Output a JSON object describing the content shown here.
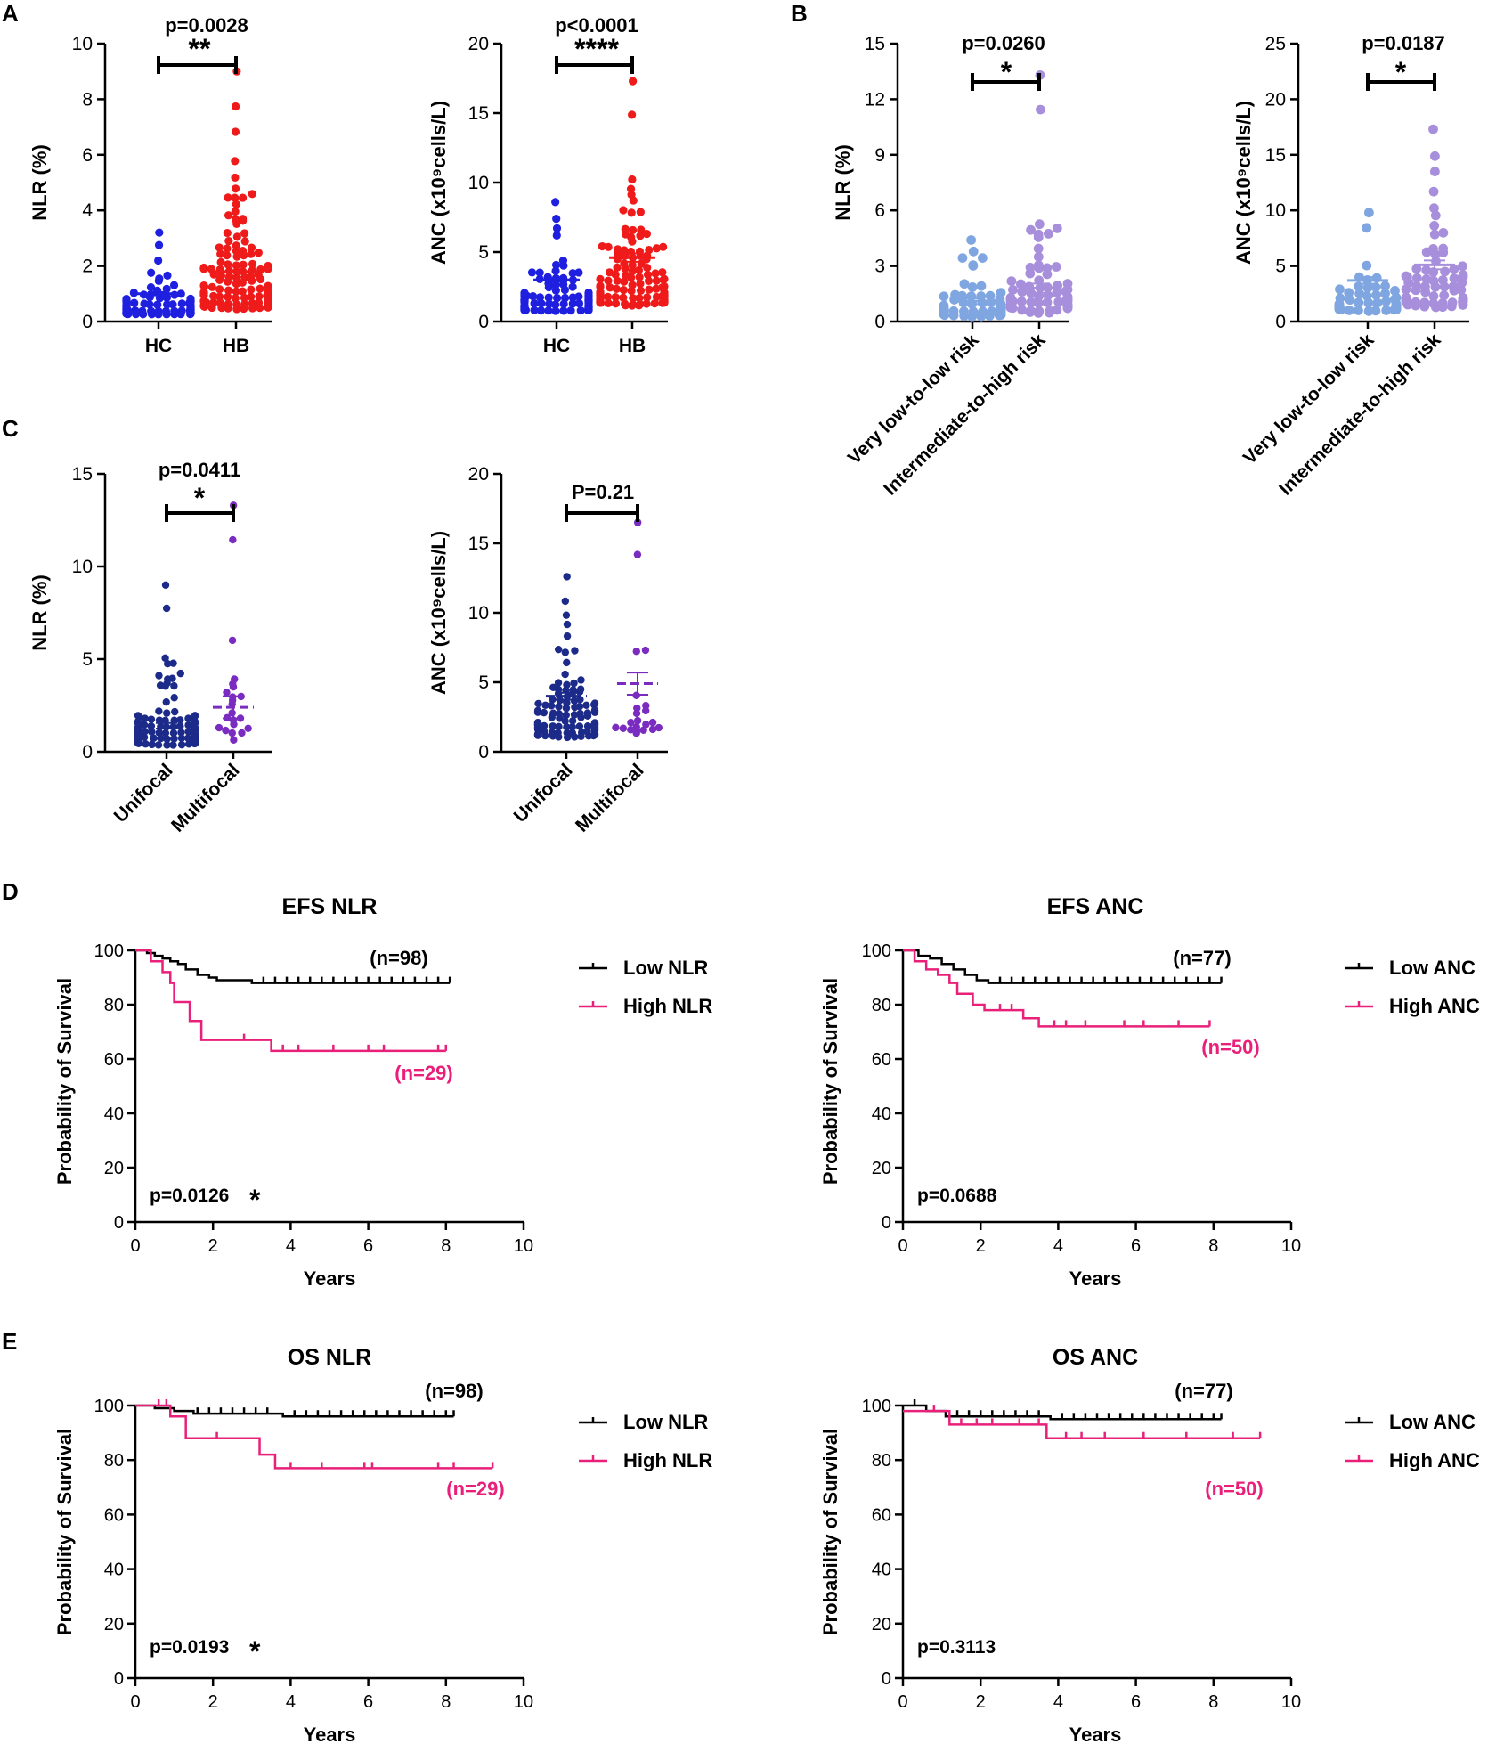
{
  "colors": {
    "hc": "#1f1fe0",
    "hb": "#ef1a1a",
    "low_risk": "#7fa6e0",
    "high_risk": "#a78fdc",
    "unifocal": "#1c2a8a",
    "multifocal": "#7a2cc0",
    "low_curve": "#000000",
    "high_curve": "#e8207a"
  },
  "panels": {
    "A": {
      "letter": "A",
      "nlr": {
        "ylabel": "NLR (%)",
        "yticks": [
          "0",
          "2",
          "4",
          "6",
          "8",
          "10"
        ],
        "categories": [
          "HC",
          "HB"
        ],
        "pvalue": "p=0.0028",
        "stars": "**"
      },
      "anc": {
        "ylabel": "ANC (x10⁹cells/L)",
        "yticks": [
          "0",
          "5",
          "10",
          "15",
          "20"
        ],
        "categories": [
          "HC",
          "HB"
        ],
        "pvalue": "p<0.0001",
        "stars": "****"
      }
    },
    "B": {
      "letter": "B",
      "nlr": {
        "ylabel": "NLR (%)",
        "yticks": [
          "0",
          "3",
          "6",
          "9",
          "12",
          "15"
        ],
        "categories": [
          "Very low-to-low risk",
          "Intermediate-to-high risk"
        ],
        "pvalue": "p=0.0260",
        "stars": "*"
      },
      "anc": {
        "ylabel": "ANC (x10⁹cells/L)",
        "yticks": [
          "0",
          "5",
          "10",
          "15",
          "20",
          "25"
        ],
        "categories": [
          "Very low-to-low risk",
          "Intermediate-to-high risk"
        ],
        "pvalue": "p=0.0187",
        "stars": "*"
      }
    },
    "C": {
      "letter": "C",
      "nlr": {
        "ylabel": "NLR (%)",
        "yticks": [
          "0",
          "5",
          "10",
          "15"
        ],
        "categories": [
          "Unifocal",
          "Multifocal"
        ],
        "pvalue": "p=0.0411",
        "stars": "*"
      },
      "anc": {
        "ylabel": "ANC (x10⁹cells/L)",
        "yticks": [
          "0",
          "5",
          "10",
          "15",
          "20"
        ],
        "categories": [
          "Unifocal",
          "Multifocal"
        ],
        "pvalue": "P=0.21",
        "stars": ""
      }
    },
    "D": {
      "letter": "D",
      "efs_nlr": {
        "title": "EFS NLR",
        "ylabel": "Probability of Survival",
        "xlabel": "Years",
        "pvalue": "p=0.0126",
        "stars": "*",
        "n_low": "(n=98)",
        "n_high": "(n=29)",
        "legend_low": "Low NLR",
        "legend_high": "High NLR"
      },
      "efs_anc": {
        "title": "EFS ANC",
        "ylabel": "Probability of Survival",
        "xlabel": "Years",
        "pvalue": "p=0.0688",
        "stars": "",
        "n_low": "(n=77)",
        "n_high": "(n=50)",
        "legend_low": "Low ANC",
        "legend_high": "High ANC"
      }
    },
    "E": {
      "letter": "E",
      "os_nlr": {
        "title": "OS NLR",
        "ylabel": "Probability of Survival",
        "xlabel": "Years",
        "pvalue": "p=0.0193",
        "stars": "*",
        "n_low": "(n=98)",
        "n_high": "(n=29)",
        "legend_low": "Low NLR",
        "legend_high": "High NLR"
      },
      "os_anc": {
        "title": "OS ANC",
        "ylabel": "Probability of Survival",
        "xlabel": "Years",
        "pvalue": "p=0.3113",
        "stars": "",
        "n_low": "(n=77)",
        "n_high": "(n=50)",
        "legend_low": "Low ANC",
        "legend_high": "High ANC"
      }
    }
  },
  "chart_data": [
    {
      "id": "A-nlr",
      "type": "scatter",
      "title": "",
      "xlabel": "",
      "ylabel": "NLR (%)",
      "ylim": [
        0,
        10
      ],
      "categories": [
        "HC",
        "HB"
      ],
      "groups": [
        {
          "name": "HC",
          "n": 110,
          "mean": 1.0,
          "sem": 0.06,
          "max": 3.2,
          "spread": 0.45
        },
        {
          "name": "HB",
          "n": 127,
          "mean": 1.8,
          "sem": 0.2,
          "max": 9.0,
          "spread": 1.6
        }
      ],
      "comparison": {
        "p": "p=0.0028",
        "stars": "**"
      }
    },
    {
      "id": "A-anc",
      "type": "scatter",
      "title": "",
      "xlabel": "",
      "ylabel": "ANC (x10⁹cells/L)",
      "ylim": [
        0,
        20
      ],
      "categories": [
        "HC",
        "HB"
      ],
      "groups": [
        {
          "name": "HC",
          "n": 110,
          "mean": 3.0,
          "sem": 0.12,
          "max": 8.6,
          "spread": 1.2
        },
        {
          "name": "HB",
          "n": 127,
          "mean": 4.6,
          "sem": 0.3,
          "max": 17.3,
          "spread": 2.6
        }
      ],
      "comparison": {
        "p": "p<0.0001",
        "stars": "****"
      }
    },
    {
      "id": "B-nlr",
      "type": "scatter",
      "title": "",
      "xlabel": "",
      "ylabel": "NLR (%)",
      "ylim": [
        0,
        15
      ],
      "categories": [
        "Very low-to-low risk",
        "Intermediate-to-high risk"
      ],
      "groups": [
        {
          "name": "Very low-to-low risk",
          "n": 55,
          "mean": 1.1,
          "sem": 0.15,
          "max": 4.4,
          "spread": 0.9
        },
        {
          "name": "Intermediate-to-high risk",
          "n": 72,
          "mean": 1.8,
          "sem": 0.25,
          "max": 13.3,
          "spread": 1.5
        }
      ],
      "comparison": {
        "p": "p=0.0260",
        "stars": "*"
      }
    },
    {
      "id": "B-anc",
      "type": "scatter",
      "title": "",
      "xlabel": "",
      "ylabel": "ANC (x10⁹cells/L)",
      "ylim": [
        0,
        25
      ],
      "categories": [
        "Very low-to-low risk",
        "Intermediate-to-high risk"
      ],
      "groups": [
        {
          "name": "Very low-to-low risk",
          "n": 55,
          "mean": 3.7,
          "sem": 0.3,
          "max": 9.8,
          "spread": 1.9
        },
        {
          "name": "Intermediate-to-high risk",
          "n": 72,
          "mean": 5.1,
          "sem": 0.4,
          "max": 17.3,
          "spread": 2.9
        }
      ],
      "comparison": {
        "p": "p=0.0187",
        "stars": "*"
      }
    },
    {
      "id": "C-nlr",
      "type": "scatter",
      "title": "",
      "xlabel": "",
      "ylabel": "NLR (%)",
      "ylim": [
        0,
        15
      ],
      "categories": [
        "Unifocal",
        "Multifocal"
      ],
      "groups": [
        {
          "name": "Unifocal",
          "n": 105,
          "mean": 1.4,
          "sem": 0.15,
          "max": 9.0,
          "spread": 1.3
        },
        {
          "name": "Multifocal",
          "n": 22,
          "mean": 2.4,
          "sem": 0.6,
          "max": 13.3,
          "spread": 1.8
        }
      ],
      "comparison": {
        "p": "p=0.0411",
        "stars": "*"
      }
    },
    {
      "id": "C-anc",
      "type": "scatter",
      "title": "",
      "xlabel": "",
      "ylabel": "ANC (x10⁹cells/L)",
      "ylim": [
        0,
        20
      ],
      "categories": [
        "Unifocal",
        "Multifocal"
      ],
      "groups": [
        {
          "name": "Unifocal",
          "n": 105,
          "mean": 4.0,
          "sem": 0.25,
          "max": 12.6,
          "spread": 2.3
        },
        {
          "name": "Multifocal",
          "n": 22,
          "mean": 4.9,
          "sem": 0.8,
          "max": 16.5,
          "spread": 2.8
        }
      ],
      "comparison": {
        "p": "P=0.21",
        "stars": ""
      }
    },
    {
      "id": "D-efs-nlr",
      "type": "line",
      "title": "EFS NLR",
      "xlabel": "Years",
      "ylabel": "Probability of Survival",
      "xlim": [
        0,
        10
      ],
      "ylim": [
        0,
        100
      ],
      "series": [
        {
          "name": "Low NLR",
          "n": 98,
          "steps": [
            [
              0,
              100
            ],
            [
              0.3,
              99
            ],
            [
              0.5,
              98
            ],
            [
              0.7,
              97
            ],
            [
              0.9,
              96
            ],
            [
              1.1,
              95
            ],
            [
              1.3,
              93
            ],
            [
              1.6,
              91
            ],
            [
              1.9,
              90
            ],
            [
              2.1,
              89
            ],
            [
              3.0,
              88
            ],
            [
              8.1,
              88
            ]
          ],
          "censored": [
            3.3,
            3.6,
            3.9,
            4.2,
            4.5,
            4.8,
            5.1,
            5.4,
            5.7,
            6.0,
            6.3,
            6.6,
            6.9,
            7.2,
            7.5,
            7.8,
            8.1
          ]
        },
        {
          "name": "High NLR",
          "n": 29,
          "steps": [
            [
              0,
              100
            ],
            [
              0.4,
              96
            ],
            [
              0.7,
              92
            ],
            [
              0.9,
              88
            ],
            [
              1.0,
              81
            ],
            [
              1.4,
              74
            ],
            [
              1.7,
              67
            ],
            [
              3.5,
              63
            ],
            [
              8.0,
              63
            ]
          ],
          "censored": [
            2.8,
            3.8,
            4.2,
            5.1,
            6.0,
            6.4,
            7.8,
            8.0
          ]
        }
      ],
      "annotation": {
        "p": "p=0.0126",
        "stars": "*"
      }
    },
    {
      "id": "D-efs-anc",
      "type": "line",
      "title": "EFS ANC",
      "xlabel": "Years",
      "ylabel": "Probability of Survival",
      "xlim": [
        0,
        10
      ],
      "ylim": [
        0,
        100
      ],
      "series": [
        {
          "name": "Low ANC",
          "n": 77,
          "steps": [
            [
              0,
              100
            ],
            [
              0.4,
              98
            ],
            [
              0.7,
              97
            ],
            [
              1.0,
              95
            ],
            [
              1.3,
              93
            ],
            [
              1.6,
              91
            ],
            [
              1.9,
              89
            ],
            [
              2.2,
              88
            ],
            [
              8.2,
              88
            ]
          ],
          "censored": [
            2.5,
            2.8,
            3.1,
            3.4,
            3.7,
            4.0,
            4.3,
            4.6,
            4.9,
            5.2,
            5.5,
            5.8,
            6.1,
            6.4,
            6.7,
            7.0,
            7.3,
            7.6,
            7.9,
            8.2
          ]
        },
        {
          "name": "High ANC",
          "n": 50,
          "steps": [
            [
              0,
              100
            ],
            [
              0.3,
              96
            ],
            [
              0.6,
              93
            ],
            [
              0.9,
              91
            ],
            [
              1.2,
              88
            ],
            [
              1.4,
              84
            ],
            [
              1.8,
              80
            ],
            [
              2.1,
              78
            ],
            [
              3.1,
              75
            ],
            [
              3.5,
              72
            ],
            [
              7.9,
              72
            ]
          ],
          "censored": [
            2.5,
            2.8,
            3.9,
            4.2,
            4.7,
            5.7,
            6.2,
            7.1,
            7.9
          ]
        }
      ],
      "annotation": {
        "p": "p=0.0688",
        "stars": ""
      }
    },
    {
      "id": "E-os-nlr",
      "type": "line",
      "title": "OS NLR",
      "xlabel": "Years",
      "ylabel": "Probability of Survival",
      "xlim": [
        0,
        10
      ],
      "ylim": [
        0,
        100
      ],
      "series": [
        {
          "name": "Low NLR",
          "n": 98,
          "steps": [
            [
              0,
              100
            ],
            [
              0.5,
              99
            ],
            [
              1.0,
              98
            ],
            [
              1.5,
              97
            ],
            [
              3.8,
              96
            ],
            [
              8.2,
              96
            ]
          ],
          "censored": [
            1.6,
            1.9,
            2.2,
            2.5,
            2.8,
            3.1,
            3.4,
            4.1,
            4.4,
            4.7,
            5.0,
            5.3,
            5.6,
            5.9,
            6.2,
            6.5,
            6.8,
            7.1,
            7.4,
            7.7,
            8.0,
            8.2
          ]
        },
        {
          "name": "High NLR",
          "n": 29,
          "steps": [
            [
              0,
              100
            ],
            [
              0.9,
              96
            ],
            [
              1.3,
              88
            ],
            [
              3.2,
              82
            ],
            [
              3.6,
              77
            ],
            [
              9.2,
              77
            ]
          ],
          "censored": [
            0.6,
            0.8,
            2.1,
            4.0,
            4.8,
            5.9,
            6.1,
            7.8,
            8.2,
            9.2
          ]
        }
      ],
      "annotation": {
        "p": "p=0.0193",
        "stars": "*"
      }
    },
    {
      "id": "E-os-anc",
      "type": "line",
      "title": "OS ANC",
      "xlabel": "Years",
      "ylabel": "Probability of Survival",
      "xlim": [
        0,
        10
      ],
      "ylim": [
        0,
        100
      ],
      "series": [
        {
          "name": "Low ANC",
          "n": 77,
          "steps": [
            [
              0,
              100
            ],
            [
              0.6,
              98
            ],
            [
              1.1,
              96
            ],
            [
              3.8,
              95
            ],
            [
              8.2,
              95
            ]
          ],
          "censored": [
            0.3,
            1.4,
            1.7,
            2.0,
            2.3,
            2.6,
            2.9,
            3.2,
            3.5,
            4.1,
            4.4,
            4.7,
            5.0,
            5.3,
            5.6,
            5.9,
            6.2,
            6.5,
            6.8,
            7.1,
            7.4,
            7.7,
            8.0,
            8.2
          ]
        },
        {
          "name": "High ANC",
          "n": 50,
          "steps": [
            [
              0,
              98
            ],
            [
              1.2,
              93
            ],
            [
              3.7,
              88
            ],
            [
              9.2,
              88
            ]
          ],
          "censored": [
            0.8,
            1.5,
            1.9,
            2.3,
            3.0,
            3.5,
            4.2,
            4.6,
            5.2,
            6.2,
            7.3,
            8.5,
            9.2
          ]
        }
      ],
      "annotation": {
        "p": "p=0.3113",
        "stars": ""
      }
    }
  ]
}
